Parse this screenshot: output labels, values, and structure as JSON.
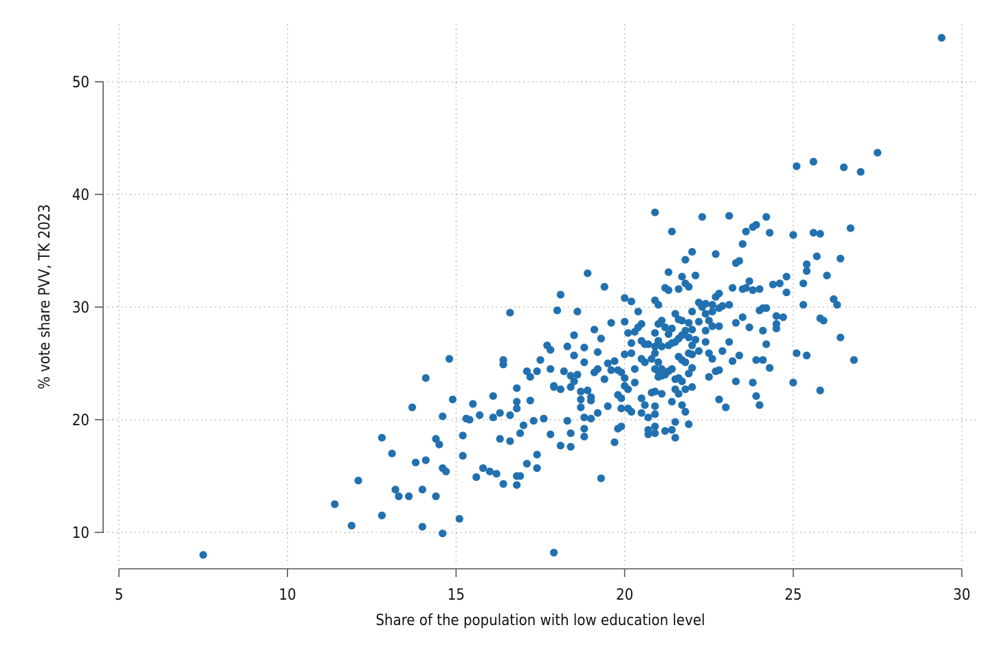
{
  "chart_data": {
    "type": "scatter",
    "xlabel": "Share of the population with low education level",
    "ylabel": "% vote share PVV, TK 2023",
    "xlim": [
      5,
      30
    ],
    "ylim": [
      8,
      54
    ],
    "xticks": [
      5,
      10,
      15,
      20,
      25,
      30
    ],
    "yticks": [
      10,
      20,
      30,
      40,
      50
    ],
    "grid": true,
    "colors": {
      "marker": "#2171B0"
    },
    "points": [
      [
        7.5,
        8.0
      ],
      [
        17.9,
        8.2
      ],
      [
        11.4,
        12.5
      ],
      [
        11.9,
        10.6
      ],
      [
        12.1,
        14.6
      ],
      [
        12.8,
        18.4
      ],
      [
        12.8,
        11.5
      ],
      [
        13.1,
        17.0
      ],
      [
        13.2,
        13.8
      ],
      [
        13.3,
        13.2
      ],
      [
        13.6,
        13.2
      ],
      [
        13.7,
        21.1
      ],
      [
        13.8,
        16.2
      ],
      [
        14.0,
        13.8
      ],
      [
        14.1,
        23.7
      ],
      [
        14.1,
        16.4
      ],
      [
        14.0,
        10.5
      ],
      [
        14.4,
        18.3
      ],
      [
        14.5,
        17.8
      ],
      [
        14.4,
        13.2
      ],
      [
        14.6,
        15.7
      ],
      [
        14.7,
        15.4
      ],
      [
        14.6,
        20.3
      ],
      [
        14.6,
        9.9
      ],
      [
        14.8,
        25.4
      ],
      [
        14.9,
        21.8
      ],
      [
        15.1,
        11.2
      ],
      [
        15.2,
        18.6
      ],
      [
        15.2,
        16.8
      ],
      [
        15.3,
        20.1
      ],
      [
        15.4,
        20.0
      ],
      [
        15.5,
        21.4
      ],
      [
        15.6,
        14.9
      ],
      [
        15.7,
        20.4
      ],
      [
        15.8,
        15.7
      ],
      [
        16.0,
        15.4
      ],
      [
        16.1,
        22.1
      ],
      [
        16.1,
        20.2
      ],
      [
        16.2,
        15.2
      ],
      [
        16.3,
        20.6
      ],
      [
        16.3,
        18.3
      ],
      [
        16.4,
        14.3
      ],
      [
        16.4,
        25.3
      ],
      [
        16.4,
        24.9
      ],
      [
        16.6,
        29.5
      ],
      [
        16.6,
        18.1
      ],
      [
        16.6,
        20.4
      ],
      [
        16.8,
        22.8
      ],
      [
        16.8,
        21.6
      ],
      [
        16.8,
        21.0
      ],
      [
        16.8,
        15.0
      ],
      [
        16.8,
        14.2
      ],
      [
        16.9,
        18.8
      ],
      [
        16.9,
        15.0
      ],
      [
        17.0,
        19.5
      ],
      [
        17.1,
        24.3
      ],
      [
        17.1,
        16.1
      ],
      [
        17.2,
        21.7
      ],
      [
        17.2,
        23.8
      ],
      [
        17.3,
        19.9
      ],
      [
        17.4,
        24.3
      ],
      [
        17.4,
        16.9
      ],
      [
        17.4,
        15.7
      ],
      [
        17.5,
        25.3
      ],
      [
        17.6,
        20.1
      ],
      [
        17.7,
        26.6
      ],
      [
        17.8,
        26.2
      ],
      [
        17.8,
        24.5
      ],
      [
        17.9,
        22.9
      ],
      [
        17.8,
        18.7
      ],
      [
        17.9,
        23.0
      ],
      [
        18.0,
        29.7
      ],
      [
        18.1,
        31.1
      ],
      [
        18.1,
        22.7
      ],
      [
        18.1,
        17.7
      ],
      [
        18.2,
        24.3
      ],
      [
        18.3,
        26.5
      ],
      [
        18.3,
        19.9
      ],
      [
        18.4,
        23.9
      ],
      [
        18.4,
        22.9
      ],
      [
        18.4,
        18.8
      ],
      [
        18.5,
        27.5
      ],
      [
        18.5,
        25.7
      ],
      [
        18.4,
        17.6
      ],
      [
        18.5,
        23.4
      ],
      [
        18.6,
        29.6
      ],
      [
        18.6,
        24.0
      ],
      [
        18.7,
        22.5
      ],
      [
        18.7,
        21.8
      ],
      [
        18.8,
        26.4
      ],
      [
        18.8,
        25.1
      ],
      [
        18.7,
        21.1
      ],
      [
        18.8,
        20.2
      ],
      [
        18.8,
        19.2
      ],
      [
        18.8,
        18.5
      ],
      [
        18.9,
        33.0
      ],
      [
        18.9,
        22.6
      ],
      [
        19.0,
        22.0
      ],
      [
        19.0,
        21.7
      ],
      [
        19.0,
        20.1
      ],
      [
        19.1,
        28.0
      ],
      [
        19.1,
        24.2
      ],
      [
        19.2,
        24.5
      ],
      [
        19.2,
        20.6
      ],
      [
        19.2,
        26.0
      ],
      [
        19.3,
        27.2
      ],
      [
        19.3,
        14.8
      ],
      [
        19.4,
        31.8
      ],
      [
        19.4,
        23.6
      ],
      [
        19.5,
        21.2
      ],
      [
        19.5,
        25.0
      ],
      [
        19.6,
        24.4
      ],
      [
        19.6,
        28.6
      ],
      [
        19.7,
        25.2
      ],
      [
        19.7,
        18.0
      ],
      [
        19.8,
        24.4
      ],
      [
        19.8,
        22.2
      ],
      [
        19.9,
        21.9
      ],
      [
        19.9,
        24.2
      ],
      [
        19.8,
        19.2
      ],
      [
        19.9,
        21.0
      ],
      [
        19.9,
        19.4
      ],
      [
        20.0,
        28.7
      ],
      [
        20.0,
        23.7
      ],
      [
        20.0,
        25.8
      ],
      [
        20.0,
        23.0
      ],
      [
        20.0,
        30.8
      ],
      [
        20.1,
        27.7
      ],
      [
        20.1,
        22.7
      ],
      [
        20.1,
        21.0
      ],
      [
        20.2,
        30.5
      ],
      [
        20.2,
        26.8
      ],
      [
        20.2,
        25.9
      ],
      [
        20.2,
        20.7
      ],
      [
        20.3,
        27.8
      ],
      [
        20.3,
        24.5
      ],
      [
        20.3,
        23.3
      ],
      [
        20.4,
        29.6
      ],
      [
        20.4,
        28.2
      ],
      [
        20.5,
        27.0
      ],
      [
        20.5,
        25.4
      ],
      [
        20.5,
        21.9
      ],
      [
        20.5,
        20.6
      ],
      [
        20.5,
        28.5
      ],
      [
        20.6,
        26.7
      ],
      [
        20.6,
        25.1
      ],
      [
        20.6,
        21.3
      ],
      [
        20.7,
        26.7
      ],
      [
        20.7,
        20.2
      ],
      [
        20.7,
        18.7
      ],
      [
        20.8,
        22.4
      ],
      [
        20.8,
        25.4
      ],
      [
        20.7,
        19.1
      ],
      [
        20.9,
        38.4
      ],
      [
        20.9,
        30.6
      ],
      [
        20.9,
        27.7
      ],
      [
        20.9,
        26.5
      ],
      [
        20.9,
        25.9
      ],
      [
        20.9,
        24.5
      ],
      [
        20.9,
        22.5
      ],
      [
        20.9,
        21.2
      ],
      [
        20.9,
        20.5
      ],
      [
        20.9,
        19.4
      ],
      [
        20.9,
        18.8
      ],
      [
        21.0,
        30.2
      ],
      [
        21.0,
        28.5
      ],
      [
        21.0,
        27.0
      ],
      [
        21.0,
        25.1
      ],
      [
        21.0,
        24.3
      ],
      [
        21.0,
        23.8
      ],
      [
        21.1,
        28.8
      ],
      [
        21.1,
        26.5
      ],
      [
        21.1,
        24.5
      ],
      [
        21.1,
        23.9
      ],
      [
        21.1,
        22.3
      ],
      [
        21.2,
        31.7
      ],
      [
        21.2,
        28.2
      ],
      [
        21.2,
        24.0
      ],
      [
        21.2,
        19.0
      ],
      [
        21.3,
        33.1
      ],
      [
        21.3,
        31.5
      ],
      [
        21.3,
        27.6
      ],
      [
        21.3,
        26.6
      ],
      [
        21.3,
        24.3
      ],
      [
        21.4,
        36.7
      ],
      [
        21.4,
        28.1
      ],
      [
        21.4,
        26.8
      ],
      [
        21.4,
        24.5
      ],
      [
        21.4,
        19.1
      ],
      [
        21.4,
        21.6
      ],
      [
        21.5,
        29.4
      ],
      [
        21.5,
        26.9
      ],
      [
        21.5,
        23.6
      ],
      [
        21.5,
        22.7
      ],
      [
        21.5,
        19.8
      ],
      [
        21.5,
        18.4
      ],
      [
        21.6,
        31.6
      ],
      [
        21.6,
        28.9
      ],
      [
        21.6,
        27.2
      ],
      [
        21.6,
        25.6
      ],
      [
        21.6,
        23.7
      ],
      [
        21.6,
        22.3
      ],
      [
        21.7,
        32.7
      ],
      [
        21.7,
        28.8
      ],
      [
        21.7,
        27.5
      ],
      [
        21.7,
        25.3
      ],
      [
        21.7,
        23.4
      ],
      [
        21.7,
        21.3
      ],
      [
        21.8,
        34.2
      ],
      [
        21.8,
        32.1
      ],
      [
        21.8,
        27.9
      ],
      [
        21.8,
        25.1
      ],
      [
        21.8,
        22.7
      ],
      [
        21.8,
        20.7
      ],
      [
        21.9,
        31.8
      ],
      [
        21.9,
        28.6
      ],
      [
        21.9,
        27.3
      ],
      [
        21.9,
        25.9
      ],
      [
        21.9,
        24.1
      ],
      [
        21.9,
        19.6
      ],
      [
        22.0,
        34.9
      ],
      [
        22.0,
        29.6
      ],
      [
        22.0,
        28.0
      ],
      [
        22.0,
        26.6
      ],
      [
        22.0,
        25.8
      ],
      [
        22.0,
        24.6
      ],
      [
        22.0,
        22.9
      ],
      [
        22.1,
        32.8
      ],
      [
        22.1,
        27.1
      ],
      [
        22.2,
        30.4
      ],
      [
        22.2,
        28.7
      ],
      [
        22.2,
        26.1
      ],
      [
        22.3,
        38.0
      ],
      [
        22.3,
        30.0
      ],
      [
        22.4,
        30.3
      ],
      [
        22.4,
        29.4
      ],
      [
        22.4,
        27.9
      ],
      [
        22.4,
        26.9
      ],
      [
        22.5,
        28.8
      ],
      [
        22.5,
        25.9
      ],
      [
        22.5,
        23.8
      ],
      [
        22.6,
        30.2
      ],
      [
        22.6,
        29.6
      ],
      [
        22.6,
        28.3
      ],
      [
        22.6,
        25.4
      ],
      [
        22.7,
        30.9
      ],
      [
        22.7,
        24.3
      ],
      [
        22.7,
        34.7
      ],
      [
        22.8,
        31.2
      ],
      [
        22.8,
        29.9
      ],
      [
        22.8,
        28.3
      ],
      [
        22.8,
        24.4
      ],
      [
        22.8,
        21.8
      ],
      [
        22.9,
        30.1
      ],
      [
        22.9,
        26.1
      ],
      [
        23.0,
        21.1
      ],
      [
        23.1,
        38.1
      ],
      [
        23.1,
        30.2
      ],
      [
        23.1,
        26.9
      ],
      [
        23.2,
        31.7
      ],
      [
        23.2,
        25.2
      ],
      [
        23.3,
        33.9
      ],
      [
        23.3,
        28.6
      ],
      [
        23.3,
        23.4
      ],
      [
        23.4,
        34.1
      ],
      [
        23.4,
        25.7
      ],
      [
        23.5,
        35.6
      ],
      [
        23.5,
        31.6
      ],
      [
        23.5,
        29.1
      ],
      [
        23.6,
        36.7
      ],
      [
        23.6,
        31.7
      ],
      [
        23.7,
        32.3
      ],
      [
        23.7,
        28.2
      ],
      [
        23.8,
        37.1
      ],
      [
        23.8,
        31.5
      ],
      [
        23.8,
        23.3
      ],
      [
        23.9,
        37.3
      ],
      [
        23.9,
        25.3
      ],
      [
        23.9,
        22.1
      ],
      [
        24.0,
        31.6
      ],
      [
        24.0,
        29.7
      ],
      [
        24.0,
        21.3
      ],
      [
        24.1,
        29.9
      ],
      [
        24.1,
        27.9
      ],
      [
        24.1,
        25.3
      ],
      [
        24.2,
        38.0
      ],
      [
        24.2,
        29.9
      ],
      [
        24.2,
        26.7
      ],
      [
        24.3,
        36.6
      ],
      [
        24.3,
        24.6
      ],
      [
        24.4,
        32.0
      ],
      [
        24.5,
        29.2
      ],
      [
        24.5,
        28.5
      ],
      [
        24.5,
        28.1
      ],
      [
        24.6,
        32.1
      ],
      [
        24.7,
        29.1
      ],
      [
        24.8,
        32.7
      ],
      [
        24.8,
        31.3
      ],
      [
        25.0,
        36.4
      ],
      [
        25.0,
        23.3
      ],
      [
        25.1,
        42.5
      ],
      [
        25.1,
        25.9
      ],
      [
        25.3,
        32.1
      ],
      [
        25.3,
        30.2
      ],
      [
        25.4,
        33.8
      ],
      [
        25.4,
        33.2
      ],
      [
        25.4,
        25.7
      ],
      [
        25.6,
        42.9
      ],
      [
        25.6,
        36.6
      ],
      [
        25.7,
        34.5
      ],
      [
        25.8,
        36.5
      ],
      [
        25.8,
        29.0
      ],
      [
        25.8,
        22.6
      ],
      [
        25.9,
        28.8
      ],
      [
        26.0,
        32.8
      ],
      [
        26.2,
        30.7
      ],
      [
        26.3,
        30.2
      ],
      [
        26.4,
        34.3
      ],
      [
        26.4,
        27.3
      ],
      [
        26.5,
        42.4
      ],
      [
        26.7,
        37.0
      ],
      [
        26.8,
        25.3
      ],
      [
        27.0,
        42.0
      ],
      [
        27.5,
        43.7
      ],
      [
        29.4,
        53.9
      ]
    ]
  }
}
